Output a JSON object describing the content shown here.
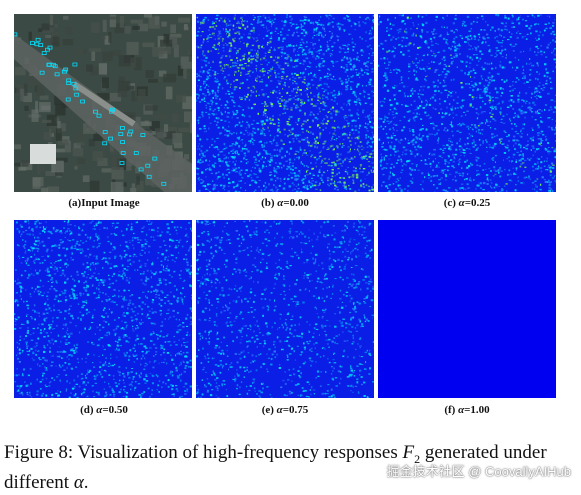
{
  "figure": {
    "panels": [
      {
        "id": "a",
        "tag": "(a)",
        "text": "Input Image",
        "alpha": "",
        "value": "",
        "kind": "aerial"
      },
      {
        "id": "b",
        "tag": "(b)",
        "text": "",
        "alpha": "α",
        "value": "=0.00",
        "kind": "response-strong"
      },
      {
        "id": "c",
        "tag": "(c)",
        "text": "",
        "alpha": "α",
        "value": "=0.25",
        "kind": "response-medium"
      },
      {
        "id": "d",
        "tag": "(d)",
        "text": "",
        "alpha": "α",
        "value": "=0.50",
        "kind": "response-weak"
      },
      {
        "id": "e",
        "tag": "(e)",
        "text": "",
        "alpha": "α",
        "value": "=0.75",
        "kind": "response-faint"
      },
      {
        "id": "f",
        "tag": "(f)",
        "text": "",
        "alpha": "α",
        "value": "=1.00",
        "kind": "response-none"
      }
    ],
    "colors": {
      "response_base": "#0a1ee6",
      "response_high": "#00e0ff",
      "response_peak": "#7dff4a",
      "flat_blue": "#0000f0",
      "aerial_base": "#3b4a44"
    }
  },
  "caption": {
    "prefix": "Figure 8: Visualization of high-frequency responses ",
    "symbol": "F",
    "subscript": "2",
    "middle": " generated under different ",
    "alpha": "α",
    "suffix": "."
  },
  "watermark": "掘金技术社区 @ CoovallyAIHub"
}
